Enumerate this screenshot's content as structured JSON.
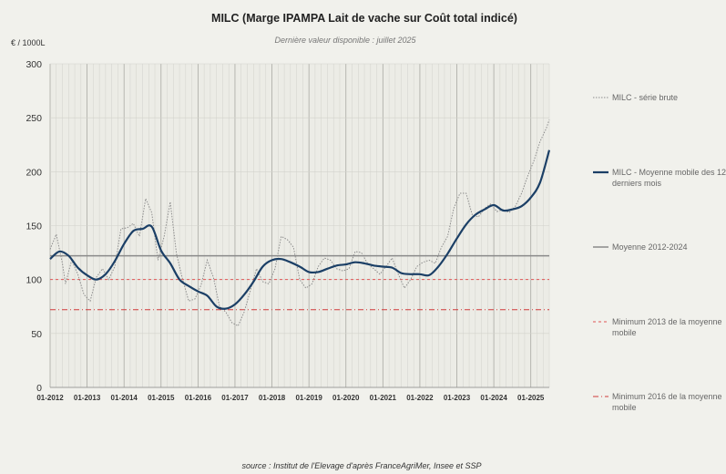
{
  "chart_data": {
    "type": "line",
    "title": "MILC (Marge IPAMPA Lait de vache sur Coût total indicé)",
    "subtitle": "Dernière valeur disponible : juillet 2025",
    "ylabel": "€ / 1000L",
    "source": "source : Institut de l'Elevage d'après FranceAgriMer, Insee et SSP",
    "ylim": [
      0,
      300
    ],
    "yticks": [
      "0",
      "50",
      "100",
      "150",
      "200",
      "250",
      "300"
    ],
    "xticks": [
      "01-2012",
      "01-2013",
      "01-2014",
      "01-2015",
      "01-2016",
      "01-2017",
      "01-2018",
      "01-2019",
      "01-2020",
      "01-2021",
      "01-2022",
      "01-2023",
      "01-2024",
      "01-2025"
    ],
    "grid": true,
    "legend_position": "right",
    "colors": {
      "raw": "#8c8c8c",
      "moving_average": "#1b3f66",
      "mean": "#8a8a8a",
      "min2013": "#e05555",
      "min2016": "#d03a3a"
    },
    "series": [
      {
        "name": "MILC - série brute",
        "style": "dotted",
        "x": [
          "01-2012",
          "03-2012",
          "05-2012",
          "06-2012",
          "08-2012",
          "10-2012",
          "12-2012",
          "02-2013",
          "04-2013",
          "06-2013",
          "08-2013",
          "10-2013",
          "12-2013",
          "02-2014",
          "04-2014",
          "06-2014",
          "08-2014",
          "10-2014",
          "12-2014",
          "02-2015",
          "04-2015",
          "06-2015",
          "08-2015",
          "10-2015",
          "12-2015",
          "02-2016",
          "04-2016",
          "06-2016",
          "08-2016",
          "10-2016",
          "12-2016",
          "02-2017",
          "04-2017",
          "06-2017",
          "08-2017",
          "10-2017",
          "12-2017",
          "02-2018",
          "04-2018",
          "06-2018",
          "08-2018",
          "10-2018",
          "12-2018",
          "02-2019",
          "04-2019",
          "06-2019",
          "08-2019",
          "10-2019",
          "12-2019",
          "02-2020",
          "04-2020",
          "06-2020",
          "08-2020",
          "10-2020",
          "12-2020",
          "02-2021",
          "04-2021",
          "06-2021",
          "08-2021",
          "10-2021",
          "12-2021",
          "02-2022",
          "04-2022",
          "06-2022",
          "08-2022",
          "10-2022",
          "12-2022",
          "02-2023",
          "04-2023",
          "06-2023",
          "08-2023",
          "10-2023",
          "12-2023",
          "02-2024",
          "04-2024",
          "06-2024",
          "08-2024",
          "10-2024",
          "12-2024",
          "02-2025",
          "04-2025",
          "06-2025",
          "07-2025"
        ],
        "values": [
          128,
          142,
          115,
          96,
          118,
          105,
          86,
          80,
          102,
          110,
          100,
          112,
          147,
          148,
          152,
          140,
          175,
          162,
          118,
          140,
          172,
          124,
          100,
          80,
          82,
          95,
          118,
          102,
          75,
          70,
          60,
          57,
          70,
          90,
          110,
          98,
          96,
          110,
          140,
          137,
          130,
          100,
          92,
          96,
          112,
          120,
          118,
          110,
          108,
          110,
          126,
          125,
          115,
          110,
          105,
          112,
          120,
          105,
          92,
          100,
          112,
          116,
          118,
          115,
          130,
          140,
          166,
          180,
          180,
          160,
          158,
          166,
          170,
          163,
          165,
          162,
          168,
          180,
          196,
          210,
          228,
          240,
          248
        ]
      },
      {
        "name": "MILC - Moyenne mobile des 12 derniers mois",
        "style": "solid",
        "x": [
          "01-2012",
          "04-2012",
          "07-2012",
          "10-2012",
          "01-2013",
          "04-2013",
          "07-2013",
          "10-2013",
          "01-2014",
          "04-2014",
          "07-2014",
          "10-2014",
          "01-2015",
          "04-2015",
          "07-2015",
          "10-2015",
          "01-2016",
          "04-2016",
          "07-2016",
          "10-2016",
          "01-2017",
          "04-2017",
          "07-2017",
          "10-2017",
          "01-2018",
          "04-2018",
          "07-2018",
          "10-2018",
          "01-2019",
          "04-2019",
          "07-2019",
          "10-2019",
          "01-2020",
          "04-2020",
          "07-2020",
          "10-2020",
          "01-2021",
          "04-2021",
          "07-2021",
          "10-2021",
          "01-2022",
          "04-2022",
          "07-2022",
          "10-2022",
          "01-2023",
          "04-2023",
          "07-2023",
          "10-2023",
          "01-2024",
          "04-2024",
          "07-2024",
          "10-2024",
          "01-2025",
          "04-2025",
          "07-2025"
        ],
        "values": [
          119,
          126,
          122,
          111,
          104,
          100,
          105,
          117,
          133,
          145,
          147,
          149,
          127,
          115,
          100,
          94,
          89,
          85,
          75,
          73,
          77,
          86,
          98,
          112,
          118,
          119,
          116,
          112,
          107,
          107,
          110,
          113,
          114,
          116,
          115,
          113,
          112,
          111,
          106,
          105,
          105,
          104,
          112,
          124,
          138,
          151,
          160,
          165,
          169,
          164,
          165,
          168,
          176,
          190,
          220
        ]
      },
      {
        "name": "Moyenne 2012-2024",
        "style": "solid",
        "values": [
          122
        ]
      },
      {
        "name": "Minimum 2013  de la moyenne mobile",
        "style": "dashed",
        "values": [
          100
        ]
      },
      {
        "name": "Minimum 2016 de la moyenne mobile",
        "style": "dashdot",
        "values": [
          72
        ]
      }
    ]
  }
}
